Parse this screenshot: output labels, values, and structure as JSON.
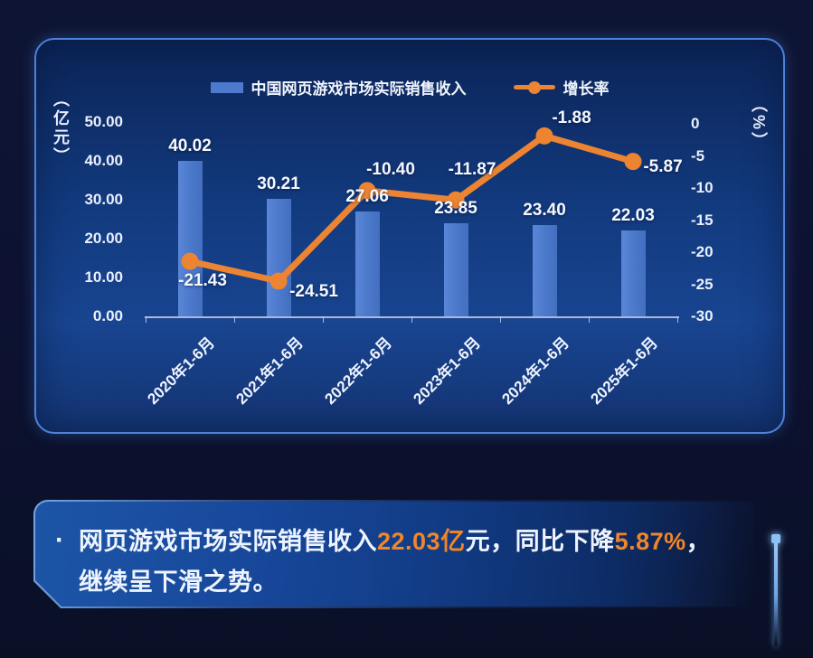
{
  "legend": {
    "revenue_label": "中国网页游戏市场实际销售收入",
    "growth_label": "增长率"
  },
  "axes": {
    "left_title": "（亿元）",
    "left_ticks": [
      "50.00",
      "40.00",
      "30.00",
      "20.00",
      "10.00",
      "0.00"
    ],
    "right_title": "（%）",
    "right_ticks": [
      "0",
      "-5",
      "-10",
      "-15",
      "-20",
      "-25",
      "-30"
    ]
  },
  "chart_data": {
    "type": "bar+line",
    "title": "",
    "categories": [
      "2020年1-6月",
      "2021年1-6月",
      "2022年1-6月",
      "2023年1-6月",
      "2024年1-6月",
      "2025年1-6月"
    ],
    "series": [
      {
        "name": "中国网页游戏市场实际销售收入",
        "type": "bar",
        "axis": "left",
        "unit": "亿元",
        "color": "#4d7acc",
        "values": [
          40.02,
          30.21,
          27.06,
          23.85,
          23.4,
          22.03
        ],
        "labels": [
          "40.02",
          "30.21",
          "27.06",
          "23.85",
          "23.40",
          "22.03"
        ]
      },
      {
        "name": "增长率",
        "type": "line",
        "axis": "right",
        "unit": "%",
        "color": "#ec8431",
        "values": [
          -21.43,
          -24.51,
          -10.4,
          -11.87,
          -1.88,
          -5.87
        ],
        "labels": [
          "-21.43",
          "-24.51",
          "-10.40",
          "-11.87",
          "-1.88",
          "-5.87"
        ]
      }
    ],
    "left_ylim": [
      0,
      50
    ],
    "left_tick_step": 10,
    "right_ylim": [
      -30,
      0
    ],
    "right_tick_step": 5,
    "legend_position": "top",
    "grid": false
  },
  "summary": {
    "bullet": "·",
    "segments": [
      {
        "text": "网页游戏市场实际销售收入",
        "highlight": false
      },
      {
        "text": "22.03亿",
        "highlight": true
      },
      {
        "text": "元，同比下降",
        "highlight": false
      },
      {
        "text": "5.87%",
        "highlight": true
      },
      {
        "text": "，继续呈下滑之势。",
        "highlight": false
      }
    ]
  },
  "colors": {
    "bar": "#4d7acc",
    "line": "#ec8431",
    "highlight": "#f0862a",
    "panel_border": "#4c82d8"
  }
}
